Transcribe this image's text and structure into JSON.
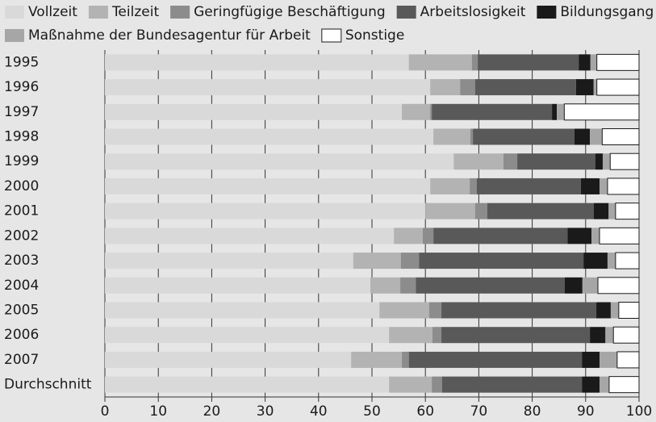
{
  "chart_data": {
    "type": "stacked-barh",
    "categories": [
      "1995",
      "1996",
      "1997",
      "1998",
      "1999",
      "2000",
      "2001",
      "2002",
      "2003",
      "2004",
      "2005",
      "2006",
      "2007",
      "Durchschnitt"
    ],
    "series": [
      {
        "name": "Vollzeit",
        "color": "#d9d9d9",
        "values": [
          56.9,
          60.9,
          55.6,
          61.5,
          65.3,
          60.9,
          60.0,
          54.1,
          46.5,
          49.7,
          51.4,
          53.2,
          46.1,
          53.2
        ]
      },
      {
        "name": "Teilzeit",
        "color": "#b3b3b3",
        "values": [
          11.8,
          5.6,
          5.3,
          6.9,
          9.3,
          7.4,
          9.3,
          5.4,
          8.9,
          5.6,
          9.3,
          8.1,
          9.5,
          8.0
        ]
      },
      {
        "name": "Geringfügige Beschäftigung",
        "color": "#8c8c8c",
        "values": [
          1.1,
          2.8,
          0.3,
          0.5,
          2.6,
          1.3,
          2.3,
          2.0,
          3.4,
          2.9,
          2.3,
          1.7,
          1.3,
          1.9
        ]
      },
      {
        "name": "Arbeitslosigkeit",
        "color": "#595959",
        "values": [
          18.9,
          18.9,
          22.5,
          19.0,
          14.6,
          19.5,
          19.9,
          25.1,
          30.8,
          27.9,
          29.0,
          27.8,
          32.4,
          26.2
        ]
      },
      {
        "name": "Bildungsgang",
        "color": "#1a1a1a",
        "values": [
          2.2,
          3.3,
          0.9,
          2.9,
          1.4,
          3.5,
          2.8,
          4.5,
          4.5,
          3.3,
          2.7,
          2.9,
          3.3,
          3.3
        ]
      },
      {
        "name": "Maßnahme der Bundesagentur für Arbeit",
        "color": "#a6a6a6",
        "values": [
          1.2,
          0.6,
          1.4,
          2.3,
          1.4,
          1.5,
          1.3,
          1.5,
          1.5,
          2.9,
          1.5,
          1.5,
          3.3,
          1.8
        ]
      },
      {
        "name": "Sonstige",
        "color": "#ffffff",
        "values": [
          7.9,
          7.9,
          14.0,
          6.9,
          5.4,
          5.9,
          4.4,
          7.4,
          4.4,
          7.7,
          3.8,
          4.8,
          4.1,
          5.6
        ]
      }
    ],
    "xlim": [
      0,
      100
    ],
    "xticks": [
      0,
      10,
      20,
      30,
      40,
      50,
      60,
      70,
      80,
      90,
      100
    ],
    "grid": true
  }
}
